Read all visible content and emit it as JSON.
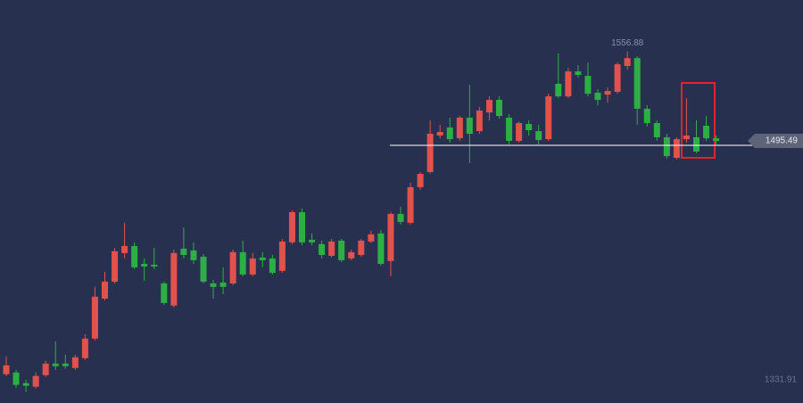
{
  "chart_data": {
    "type": "candlestick",
    "open": [
      1335.7,
      1336.9,
      1329.6,
      1327.2,
      1335.1,
      1343.0,
      1343.0,
      1340.0,
      1346.7,
      1360.1,
      1387.5,
      1399.1,
      1418.7,
      1423.5,
      1411.3,
      1410.7,
      1397.9,
      1382.7,
      1421.7,
      1420.5,
      1416.2,
      1397.9,
      1398.5,
      1397.9,
      1419.3,
      1404.0,
      1415.6,
      1415.0,
      1406.5,
      1426.0,
      1446.7,
      1427.8,
      1424.8,
      1416.8,
      1427.2,
      1415.0,
      1417.4,
      1426.6,
      1432.1,
      1413.2,
      1445.5,
      1439.4,
      1463.8,
      1474.2,
      1499.2,
      1504.7,
      1497.3,
      1511.4,
      1502.2,
      1515.0,
      1523.6,
      1511.4,
      1495.5,
      1507.1,
      1502.2,
      1496.7,
      1534.6,
      1526.0,
      1543.1,
      1540.0,
      1528.5,
      1527.2,
      1529.1,
      1546.8,
      1552.2,
      1517.5,
      1507.7,
      1498.0,
      1483.9,
      1496.7,
      1498.0,
      1505.9,
      1497.3
    ],
    "high": [
      1347.9,
      1338.7,
      1332.0,
      1336.9,
      1344.8,
      1358.3,
      1349.1,
      1349.1,
      1363.1,
      1395.5,
      1405.8,
      1422.3,
      1439.4,
      1426.0,
      1415.0,
      1422.3,
      1399.1,
      1421.1,
      1436.3,
      1426.0,
      1418.0,
      1400.4,
      1408.9,
      1421.1,
      1427.2,
      1418.7,
      1419.3,
      1417.4,
      1428.4,
      1447.9,
      1449.2,
      1432.1,
      1427.2,
      1428.4,
      1428.4,
      1421.1,
      1428.4,
      1433.9,
      1434.5,
      1446.7,
      1450.4,
      1466.8,
      1474.2,
      1509.5,
      1506.5,
      1511.4,
      1512.6,
      1533.9,
      1518.7,
      1526.0,
      1526.0,
      1513.8,
      1508.9,
      1509.5,
      1506.5,
      1527.8,
      1555.3,
      1545.5,
      1547.4,
      1549.2,
      1530.9,
      1532.1,
      1549.2,
      1556.88,
      1553.5,
      1519.9,
      1509.5,
      1500.4,
      1498.0,
      1524.8,
      1509.5,
      1512.6,
      1499.2
    ],
    "low": [
      1334.5,
      1326.5,
      1323.5,
      1325.9,
      1333.9,
      1338.7,
      1339.4,
      1338.7,
      1345.5,
      1358.9,
      1386.3,
      1397.9,
      1415.0,
      1407.7,
      1399.7,
      1407.7,
      1383.3,
      1381.4,
      1415.0,
      1411.3,
      1397.9,
      1387.5,
      1390.6,
      1396.7,
      1402.8,
      1402.8,
      1408.9,
      1404.0,
      1405.2,
      1424.8,
      1424.1,
      1424.1,
      1415.0,
      1415.6,
      1412.6,
      1413.8,
      1416.2,
      1425.4,
      1410.1,
      1402.8,
      1438.2,
      1438.2,
      1462.0,
      1472.9,
      1497.3,
      1494.3,
      1495.5,
      1480.3,
      1500.4,
      1509.5,
      1510.8,
      1493.1,
      1494.3,
      1499.2,
      1493.1,
      1495.5,
      1524.8,
      1524.8,
      1538.8,
      1526.0,
      1519.9,
      1521.7,
      1527.8,
      1544.3,
      1506.5,
      1505.3,
      1495.5,
      1483.3,
      1482.7,
      1494.3,
      1487.0,
      1495.5,
      1493.1
    ],
    "close": [
      1341.8,
      1328.4,
      1327.8,
      1334.5,
      1343.0,
      1341.2,
      1341.2,
      1347.3,
      1360.1,
      1388.8,
      1399.1,
      1419.9,
      1423.5,
      1408.9,
      1409.5,
      1409.5,
      1384.5,
      1418.7,
      1417.4,
      1413.8,
      1399.1,
      1395.5,
      1395.5,
      1419.3,
      1404.0,
      1415.0,
      1413.8,
      1405.2,
      1426.6,
      1446.7,
      1426.0,
      1426.0,
      1417.4,
      1426.6,
      1413.8,
      1419.3,
      1427.2,
      1431.5,
      1411.3,
      1445.5,
      1440.0,
      1463.8,
      1472.9,
      1500.4,
      1501.6,
      1496.7,
      1511.4,
      1500.4,
      1516.3,
      1523.6,
      1512.6,
      1495.5,
      1507.7,
      1502.8,
      1496.1,
      1526.0,
      1526.0,
      1543.1,
      1540.7,
      1527.8,
      1523.6,
      1529.7,
      1548.0,
      1552.2,
      1517.5,
      1507.7,
      1498.0,
      1485.1,
      1496.7,
      1499.2,
      1488.2,
      1497.3,
      1495.49
    ],
    "up_color": "#e2524d",
    "down_color": "#2db043",
    "ylim": [
      1316,
      1592
    ],
    "yticks": [
      1331.91
    ],
    "last_price": 1495.49
  }
}
